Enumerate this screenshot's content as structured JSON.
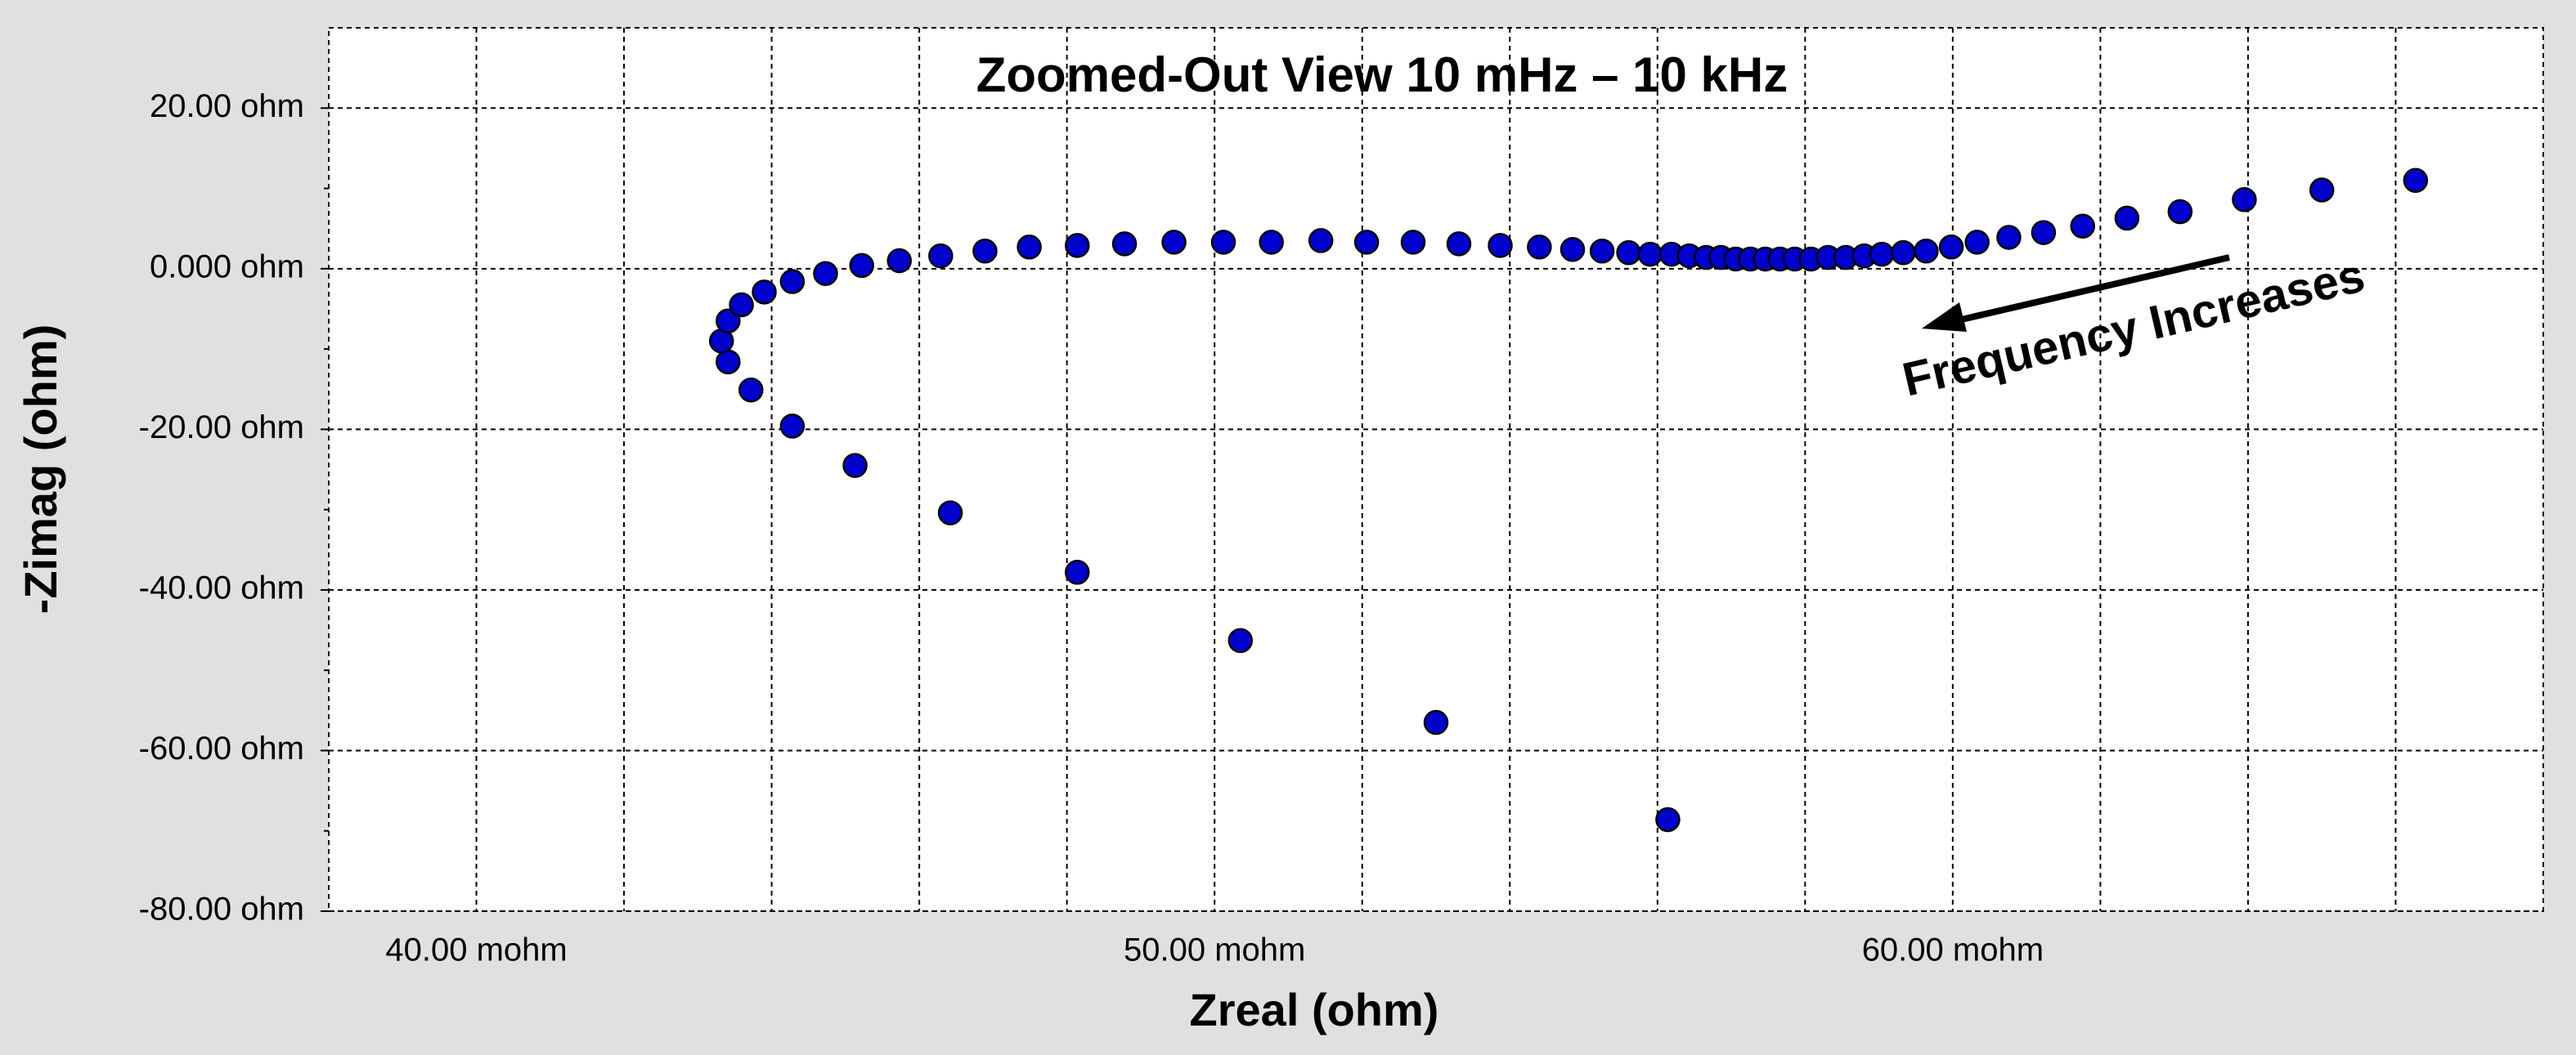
{
  "chart_data": {
    "type": "scatter",
    "title": "Zoomed-Out View 10 mHz – 10 kHz",
    "x_label": "Zreal (ohm)",
    "y_label": "-Zimag (ohm)",
    "annotation": "Frequency Increases",
    "color": "#0000cc",
    "xlim": [
      38,
      68
    ],
    "ylim": [
      -80,
      30
    ],
    "xticks": [
      {
        "value": 40,
        "label": "40.00 mohm"
      },
      {
        "value": 50,
        "label": "50.00 mohm"
      },
      {
        "value": 60,
        "label": "60.00 mohm"
      }
    ],
    "yticks": [
      {
        "value": 20,
        "label": "20.00 ohm"
      },
      {
        "value": 0,
        "label": "0.000 ohm"
      },
      {
        "value": -20,
        "label": "-20.00 ohm"
      },
      {
        "value": -40,
        "label": "-40.00 ohm"
      },
      {
        "value": -60,
        "label": "-60.00 ohm"
      },
      {
        "value": -80,
        "label": "-80.00 ohm"
      }
    ],
    "x_minor_grid": [
      42,
      44,
      46,
      48,
      52,
      54,
      56,
      58,
      62,
      64,
      66
    ],
    "y_minor_ticks": [
      -70,
      -50,
      -30,
      -10,
      10
    ],
    "grid": true,
    "x": [
      56.14,
      53.0,
      50.35,
      48.14,
      46.42,
      45.13,
      44.28,
      43.72,
      43.41,
      43.32,
      43.41,
      43.59,
      43.9,
      44.28,
      44.73,
      45.22,
      45.73,
      46.29,
      46.89,
      47.49,
      48.14,
      48.78,
      49.45,
      50.12,
      50.77,
      51.44,
      52.06,
      52.69,
      53.31,
      53.87,
      54.4,
      54.85,
      55.25,
      55.61,
      55.9,
      56.19,
      56.43,
      56.66,
      56.86,
      57.06,
      57.26,
      57.46,
      57.66,
      57.86,
      58.08,
      58.31,
      58.55,
      58.8,
      59.04,
      59.33,
      59.64,
      59.98,
      60.33,
      60.76,
      61.23,
      61.76,
      62.36,
      63.08,
      63.95,
      65.0,
      66.27
    ],
    "values": [
      -68.6,
      -56.5,
      -46.3,
      -37.8,
      -30.4,
      -24.5,
      -19.6,
      -15.1,
      -11.6,
      -9.0,
      -6.5,
      -4.5,
      -2.9,
      -1.6,
      -0.6,
      0.4,
      1.0,
      1.6,
      2.2,
      2.7,
      2.9,
      3.1,
      3.3,
      3.3,
      3.3,
      3.5,
      3.3,
      3.3,
      3.1,
      2.9,
      2.7,
      2.4,
      2.2,
      2.0,
      1.8,
      1.8,
      1.6,
      1.4,
      1.4,
      1.2,
      1.2,
      1.2,
      1.2,
      1.2,
      1.2,
      1.4,
      1.4,
      1.6,
      1.8,
      2.0,
      2.2,
      2.7,
      3.3,
      3.9,
      4.5,
      5.3,
      6.3,
      7.1,
      8.6,
      9.8,
      11.0
    ]
  }
}
